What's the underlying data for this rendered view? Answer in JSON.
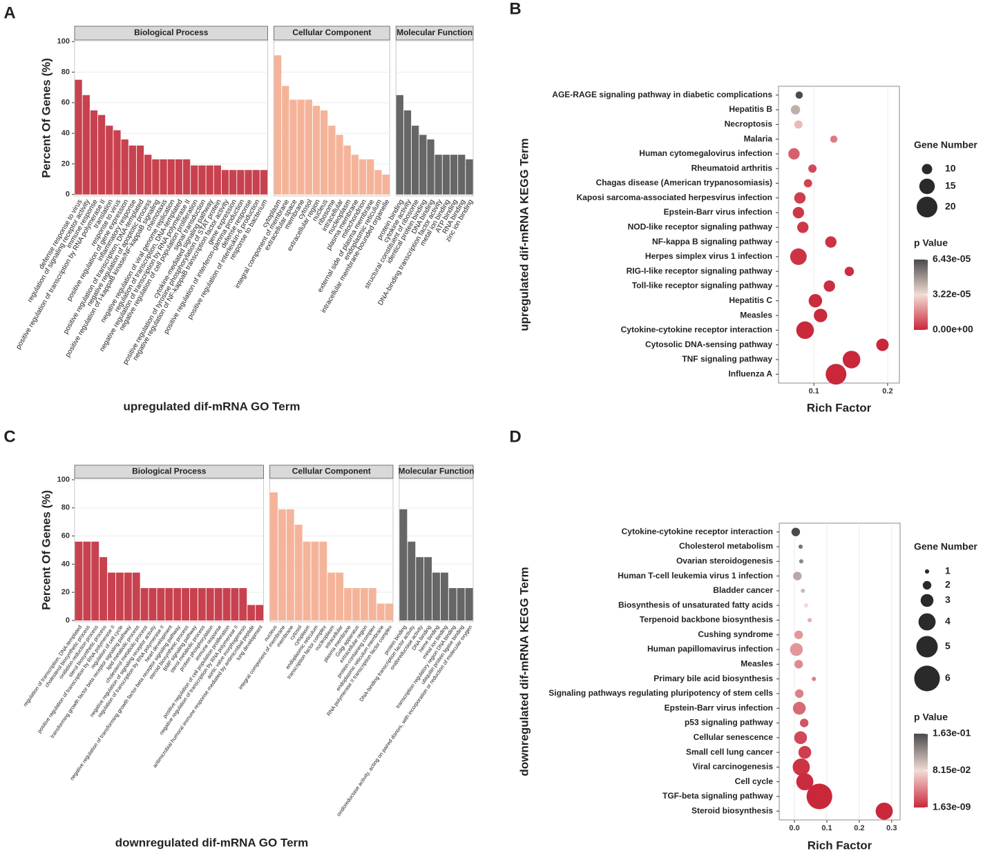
{
  "chart_data": [
    {
      "type": "bar",
      "panel": "A",
      "xlabel": "upregulated dif-mRNA GO Term",
      "ylabel": "Percent Of Genes (%)",
      "ylim": [
        -1,
        101
      ],
      "yticks": [
        0,
        20,
        40,
        60,
        80,
        100
      ],
      "grid": true,
      "facets": [
        {
          "name": "Biological Process",
          "color": "#c8414f",
          "categories": [
            "defense response to virus",
            "regulation of signaling receptor activity",
            "immune response",
            "positive regulation of transcription by RNA polymerase II",
            "translation",
            "response to virus",
            "positive regulation of gene expression",
            "inflammatory response",
            "positive regulation of transcription, DNA-templated",
            "negative regulation of apoptotic process",
            "positive regulation of I-kappaB kinase/NF-kappaB signaling",
            "chemotaxis",
            "negative regulation of viral genome replication",
            "regulation of transcription, DNA-templated",
            "negative regulation of transcription by RNA polymerase II",
            "negative regulation of cell population proliferation",
            "signal transduction",
            "cytokine-mediated signaling pathway",
            "positive regulation of tyrosine phosphorylation of STAT protein",
            "negative regulation of NF-kappaB transcription factor activity",
            "gene expression",
            "positive regulation of interferon-gamma production",
            "defense response",
            "positive regulation of interleukin-6 production",
            "response to bacterium"
          ],
          "values": [
            75,
            65,
            55,
            52,
            45,
            42,
            36,
            32,
            32,
            26,
            23,
            23,
            23,
            23,
            23,
            19,
            19,
            19,
            19,
            16,
            16,
            16,
            16,
            16,
            16
          ]
        },
        {
          "name": "Cellular Component",
          "color": "#f5b49a",
          "categories": [
            "cytoplasm",
            "integral component of membrane",
            "extracellular space",
            "membrane",
            "cytosol",
            "extracellular region",
            "nucleus",
            "ribosome",
            "intracellular",
            "nucleoplasm",
            "plasma membrane",
            "mitochondrion",
            "external side of plasma membrane",
            "endoplasmic reticulum",
            "intracellular membrane-bounded organelle"
          ],
          "values": [
            91,
            71,
            62,
            62,
            62,
            58,
            55,
            45,
            39,
            32,
            26,
            23,
            23,
            16,
            13
          ]
        },
        {
          "name": "Molecular Function",
          "color": "#666666",
          "categories": [
            "protein binding",
            "cytokine activity",
            "structural constituent of ribosome",
            "identical protein binding",
            "DNA binding",
            "DNA-binding transcription factor activity",
            "metal ion binding",
            "ATP binding",
            "RNA binding",
            "zinc ion binding"
          ],
          "values": [
            65,
            55,
            45,
            39,
            36,
            26,
            26,
            26,
            26,
            23
          ]
        }
      ]
    },
    {
      "type": "bubble",
      "panel": "B",
      "xlabel": "Rich Factor",
      "ylabel": "upregulated dif-mRNA KEGG Term",
      "categories": [
        "AGE-RAGE signaling pathway in diabetic complications",
        "Hepatitis B",
        "Necroptosis",
        "Malaria",
        "Human cytomegalovirus infection",
        "Rheumatoid arthritis",
        "Chagas disease (American trypanosomiasis)",
        "Kaposi sarcoma-associated herpesvirus infection",
        "Epstein-Barr virus infection",
        "NOD-like receptor signaling pathway",
        "NF-kappa B signaling pathway",
        "Herpes simplex virus 1 infection",
        "RIG-I-like receptor signaling pathway",
        "Toll-like receptor signaling pathway",
        "Hepatitis C",
        "Measles",
        "Cytokine-cytokine receptor interaction",
        "Cytosolic DNA-sensing pathway",
        "TNF signaling pathway",
        "Influenza A"
      ],
      "x": [
        0.08,
        0.075,
        0.079,
        0.127,
        0.073,
        0.098,
        0.092,
        0.081,
        0.079,
        0.085,
        0.123,
        0.079,
        0.148,
        0.121,
        0.102,
        0.109,
        0.088,
        0.193,
        0.151,
        0.13
      ],
      "sizes": [
        7,
        9,
        8,
        7,
        11,
        8,
        8,
        11,
        11,
        11,
        11,
        16,
        9,
        11,
        13,
        13,
        17,
        12,
        17,
        20
      ],
      "pvalues": [
        6.4e-05,
        4.2e-05,
        2.6e-05,
        1.5e-05,
        1e-05,
        6e-06,
        5e-06,
        4e-06,
        3e-06,
        3e-06,
        2e-06,
        2e-06,
        1e-06,
        1e-06,
        5e-07,
        3e-07,
        1e-07,
        5e-08,
        1e-08,
        1e-09
      ],
      "xlim": [
        0.052,
        0.216
      ],
      "xticks": [
        0.1,
        0.2
      ],
      "grid": true,
      "size_title": "Gene Number",
      "size_ticks": [
        10,
        15,
        20
      ],
      "color_title": "p Value",
      "color_ticks": [
        {
          "value": 6.43e-05,
          "label": "6.43e-05"
        },
        {
          "value": 3.22e-05,
          "label": "3.22e-05"
        },
        {
          "value": 0,
          "label": "0.00e+00"
        }
      ],
      "colors": {
        "low": "#c9283b",
        "mid": "#f3dcd6",
        "high": "#4a4a4a"
      }
    },
    {
      "type": "bar",
      "panel": "C",
      "xlabel": "downregulated dif-mRNA GO Term",
      "ylabel": "Percent Of Genes (%)",
      "ylim": [
        -1,
        101
      ],
      "yticks": [
        0,
        20,
        40,
        60,
        80,
        100
      ],
      "grid": true,
      "facets": [
        {
          "name": "Biological Process",
          "color": "#c8414f",
          "categories": [
            "regulation of transcription, DNA-templated",
            "cholesterol biosynthetic process",
            "oxidation-reduction process",
            "sterol biosynthetic process",
            "positive regulation of transcription by RNA polymerase II",
            "regulation of cell cycle",
            "transforming growth factor beta receptor signaling pathway",
            "lipid metabolic process",
            "cholesterol metabolic process",
            "negative regulation of signaling receptor activity",
            "regulation of transcription by RNA polymerase II",
            "heart development",
            "negative regulation of transforming growth factor beta receptor signaling pathway",
            "steroid biosynthetic process",
            "BMP signaling pathway",
            "sterol metabolic process",
            "protein phosphorylation",
            "immune response",
            "positive regulation of cell population proliferation",
            "negative regulation of transcription by RNA polymerase II",
            "aortic valve morphogenesis",
            "antimicrobial humoral immune response mediated by antimicrobial peptide",
            "lung development"
          ],
          "values": [
            56,
            56,
            56,
            45,
            34,
            34,
            34,
            34,
            23,
            23,
            23,
            23,
            23,
            23,
            23,
            23,
            23,
            23,
            23,
            23,
            23,
            11,
            11
          ]
        },
        {
          "name": "Cellular Component",
          "color": "#f5b49a",
          "categories": [
            "nucleus",
            "integral component of membrane",
            "membrane",
            "cytosol",
            "cytoplasm",
            "endoplasmic reticulum",
            "transcription factor complex",
            "nucleoplasm",
            "intracellular",
            "plasma membrane",
            "Golgi apparatus",
            "extracellular region",
            "protein-containing complex",
            "endoplasmic reticulum membrane",
            "RNA polymerase II transcription factor complex"
          ],
          "values": [
            91,
            79,
            79,
            68,
            56,
            56,
            56,
            34,
            34,
            23,
            23,
            23,
            23,
            12,
            12
          ]
        },
        {
          "name": "Molecular Function",
          "color": "#666666",
          "categories": [
            "protein binding",
            "DNA-binding transcription factor activity",
            "oxidoreductase activity",
            "DNA binding",
            "heme binding",
            "metal ion binding",
            "transcription regulatory region DNA binding",
            "ubiquitin protein ligase binding",
            "oxidoreductase activity, acting on paired donors, with incorporation or reduction of molecular oxygen"
          ],
          "values": [
            79,
            56,
            45,
            45,
            34,
            34,
            23,
            23,
            23
          ]
        }
      ]
    },
    {
      "type": "bubble",
      "panel": "D",
      "xlabel": "Rich Factor",
      "ylabel": "downregulated dif-mRNA KEGG Term",
      "categories": [
        "Cytokine-cytokine receptor interaction",
        "Cholesterol metabolism",
        "Ovarian steroidogenesis",
        "Human T-cell leukemia virus 1 infection",
        "Bladder cancer",
        "Biosynthesis of unsaturated fatty acids",
        "Terpenoid backbone biosynthesis",
        "Cushing syndrome",
        "Human papillomavirus infection",
        "Measles",
        "Primary bile acid biosynthesis",
        "Signaling pathways regulating pluripotency of stem cells",
        "Epstein-Barr virus infection",
        "p53 signaling pathway",
        "Cellular senescence",
        "Small cell lung cancer",
        "Viral carcinogenesis",
        "Cell cycle",
        "TGF-beta signaling pathway",
        "Steroid biosynthesis"
      ],
      "x": [
        0.004,
        0.019,
        0.021,
        0.009,
        0.026,
        0.036,
        0.047,
        0.013,
        0.006,
        0.013,
        0.06,
        0.015,
        0.015,
        0.03,
        0.019,
        0.032,
        0.021,
        0.032,
        0.077,
        0.277
      ],
      "sizes": [
        2,
        1,
        1,
        2,
        1,
        1,
        1,
        2,
        3,
        2,
        1,
        2,
        3,
        2,
        3,
        3,
        4,
        4,
        6,
        4
      ],
      "pvalues": [
        0.163,
        0.14,
        0.13,
        0.11,
        0.1,
        0.08,
        0.06,
        0.05,
        0.05,
        0.045,
        0.04,
        0.04,
        0.03,
        0.02,
        0.015,
        0.01,
        0.005,
        0.002,
        1e-05,
        1.63e-09
      ],
      "xlim": [
        -0.047,
        0.326
      ],
      "xticks": [
        {
          "value": 0,
          "label": "0.0"
        },
        0.1,
        0.2,
        0.3
      ],
      "grid": true,
      "size_title": "Gene Number",
      "size_ticks": [
        1,
        2,
        3,
        4,
        5,
        6
      ],
      "color_title": "p Value",
      "color_ticks": [
        {
          "value": 0.163,
          "label": "1.63e-01"
        },
        {
          "value": 0.0815,
          "label": "8.15e-02"
        },
        {
          "value": 1.63e-09,
          "label": "1.63e-09"
        }
      ],
      "colors": {
        "low": "#c9283b",
        "mid": "#f3dcd6",
        "high": "#4a4a4a"
      }
    }
  ]
}
